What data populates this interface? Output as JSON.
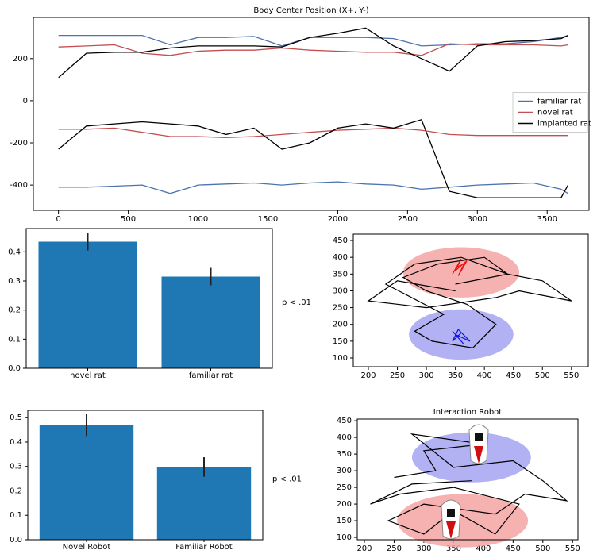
{
  "chart_data": [
    {
      "type": "line",
      "title": "Body Center Position (X+, Y-)",
      "x": [
        0,
        200,
        400,
        600,
        800,
        1000,
        1200,
        1400,
        1600,
        1800,
        2000,
        2200,
        2400,
        2600,
        2800,
        3000,
        3200,
        3400,
        3600,
        3650
      ],
      "xlim": [
        -180,
        3800
      ],
      "xticks": [
        0,
        500,
        1000,
        1500,
        2000,
        2500,
        3000,
        3500
      ],
      "ylim": [
        -520,
        395
      ],
      "yticks": [
        -400,
        -200,
        0,
        200
      ],
      "legend": "center right",
      "series": [
        {
          "name": "familiar rat",
          "color": "#4c72b0",
          "x_position": [
            310,
            310,
            310,
            310,
            265,
            300,
            300,
            305,
            260,
            300,
            300,
            300,
            295,
            260,
            265,
            270,
            270,
            280,
            300,
            310
          ],
          "y_position": [
            -410,
            -410,
            -405,
            -400,
            -440,
            -400,
            -395,
            -390,
            -400,
            -390,
            -385,
            -395,
            -400,
            -420,
            -410,
            -400,
            -395,
            -390,
            -420,
            -440
          ]
        },
        {
          "name": "novel rat",
          "color": "#c44e52",
          "x_position": [
            255,
            260,
            265,
            225,
            215,
            235,
            240,
            240,
            250,
            240,
            235,
            230,
            230,
            215,
            270,
            265,
            265,
            265,
            260,
            265
          ],
          "y_position": [
            -135,
            -135,
            -130,
            -150,
            -170,
            -170,
            -175,
            -170,
            -160,
            -150,
            -140,
            -135,
            -130,
            -140,
            -160,
            -165,
            -165,
            -165,
            -165,
            -165
          ]
        },
        {
          "name": "implanted rat",
          "color": "#000000",
          "x_position": [
            110,
            225,
            230,
            230,
            250,
            260,
            260,
            260,
            255,
            300,
            320,
            345,
            260,
            200,
            140,
            260,
            280,
            285,
            295,
            310
          ],
          "y_position": [
            -230,
            -120,
            -110,
            -100,
            -110,
            -120,
            -160,
            -130,
            -230,
            -200,
            -130,
            -110,
            -130,
            -90,
            -430,
            -460,
            -460,
            -460,
            -460,
            -400
          ]
        }
      ]
    },
    {
      "type": "bar",
      "categories": [
        "novel rat",
        "familiar rat"
      ],
      "values": [
        0.435,
        0.315
      ],
      "errors": [
        0.03,
        0.03
      ],
      "color": "#1f77b4",
      "ylim": [
        0,
        0.48
      ],
      "yticks": [
        {
          "value": 0,
          "label": "0.0"
        },
        {
          "value": 0.1,
          "label": "0.1"
        },
        {
          "value": 0.2,
          "label": "0.2"
        },
        {
          "value": 0.3,
          "label": "0.3"
        },
        {
          "value": 0.4,
          "label": "0.4"
        }
      ],
      "annotation": "p < .01"
    },
    {
      "type": "trajectory",
      "xlim": [
        174,
        579
      ],
      "ylim": [
        74,
        469
      ],
      "xticks": [
        200,
        250,
        300,
        350,
        400,
        450,
        500,
        550
      ],
      "yticks": [
        100,
        150,
        200,
        250,
        300,
        350,
        400,
        450
      ],
      "regions": [
        {
          "color": "#f4a3a3",
          "cx": 360,
          "cy": 355,
          "rx": 100,
          "ry": 75
        },
        {
          "color": "#a3a3f2",
          "cx": 360,
          "cy": 170,
          "rx": 90,
          "ry": 75
        }
      ],
      "paths": [
        {
          "color": "#000000",
          "x": [
            350,
            250,
            200,
            300,
            420,
            460,
            550,
            500,
            440,
            360,
            280,
            230,
            330,
            280,
            310,
            380,
            420,
            370,
            300,
            260,
            320,
            400,
            440,
            350
          ],
          "y": [
            300,
            330,
            270,
            250,
            280,
            300,
            270,
            330,
            350,
            400,
            380,
            320,
            230,
            180,
            150,
            130,
            200,
            260,
            300,
            340,
            380,
            400,
            350,
            320
          ]
        },
        {
          "color": "#e8100f",
          "x": [
            345,
            360,
            350,
            370,
            355,
            365,
            350
          ],
          "y": [
            350,
            395,
            360,
            390,
            345,
            380,
            370
          ]
        },
        {
          "color": "#1010e0",
          "x": [
            345,
            365,
            350,
            375,
            355,
            345,
            360
          ],
          "y": [
            180,
            140,
            170,
            150,
            185,
            150,
            175
          ]
        }
      ]
    },
    {
      "type": "bar",
      "categories": [
        "Novel Robot",
        "Familiar Robot"
      ],
      "values": [
        0.47,
        0.298
      ],
      "errors": [
        0.045,
        0.04
      ],
      "color": "#1f77b4",
      "ylim": [
        0,
        0.53
      ],
      "yticks": [
        {
          "value": 0,
          "label": "0.0"
        },
        {
          "value": 0.1,
          "label": "0.1"
        },
        {
          "value": 0.2,
          "label": "0.2"
        },
        {
          "value": 0.3,
          "label": "0.3"
        },
        {
          "value": 0.4,
          "label": "0.4"
        },
        {
          "value": 0.5,
          "label": "0.5"
        }
      ],
      "annotation": "p < .01"
    },
    {
      "type": "trajectory",
      "title": "Interaction Robot",
      "xlim": [
        188,
        559
      ],
      "ylim": [
        93,
        455
      ],
      "xticks": [
        200,
        250,
        300,
        350,
        400,
        450,
        500,
        550
      ],
      "yticks": [
        100,
        150,
        200,
        250,
        300,
        350,
        400,
        450
      ],
      "regions": [
        {
          "color": "#a3a3f2",
          "cx": 380,
          "cy": 340,
          "rx": 100,
          "ry": 75
        },
        {
          "color": "#f4a3a3",
          "cx": 365,
          "cy": 150,
          "rx": 110,
          "ry": 80
        }
      ],
      "paths": [
        {
          "color": "#000000",
          "x": [
            250,
            320,
            300,
            400,
            280,
            350,
            450,
            500,
            540,
            470,
            420,
            300,
            240,
            300,
            350,
            420,
            460,
            350,
            260,
            210,
            280,
            380
          ],
          "y": [
            280,
            300,
            360,
            380,
            410,
            310,
            330,
            270,
            210,
            230,
            170,
            200,
            150,
            110,
            180,
            110,
            200,
            250,
            230,
            200,
            260,
            270
          ]
        }
      ]
    }
  ]
}
